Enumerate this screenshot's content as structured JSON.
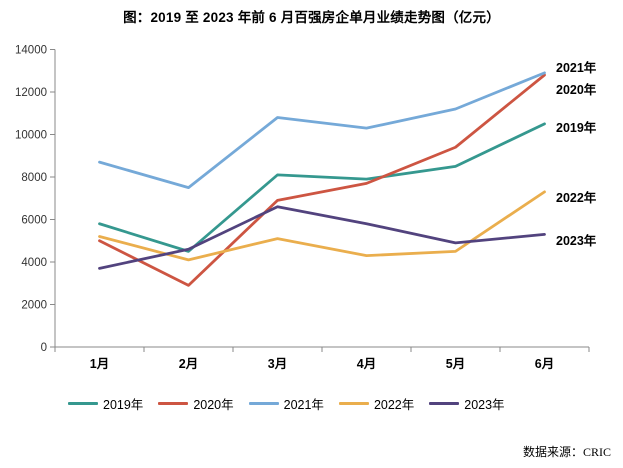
{
  "title": "图：2019 至 2023 年前 6 月百强房企单月业绩走势图（亿元）",
  "source_note": "数据来源：CRIC",
  "chart_data": {
    "type": "line",
    "title": "图：2019 至 2023 年前 6 月百强房企单月业绩走势图（亿元）",
    "unit": "亿元",
    "categories": [
      "1月",
      "2月",
      "3月",
      "4月",
      "5月",
      "6月"
    ],
    "series": [
      {
        "name": "2019年",
        "color": "#35988F",
        "values": [
          5800,
          4500,
          8100,
          7900,
          8500,
          10500
        ]
      },
      {
        "name": "2020年",
        "color": "#CD5542",
        "values": [
          5000,
          2900,
          6900,
          7700,
          9400,
          12800
        ]
      },
      {
        "name": "2021年",
        "color": "#75A9D8",
        "values": [
          8700,
          7500,
          10800,
          10300,
          11200,
          12900
        ]
      },
      {
        "name": "2022年",
        "color": "#EAAE4D",
        "values": [
          5200,
          4100,
          5100,
          4300,
          4500,
          7300
        ]
      },
      {
        "name": "2023年",
        "color": "#52437E",
        "values": [
          3700,
          4600,
          6600,
          5800,
          4900,
          5300
        ]
      }
    ],
    "ylim": [
      0,
      14000
    ],
    "ytick_labels": [
      "0",
      "2000",
      "4000",
      "6000",
      "8000",
      "10000",
      "12000",
      "14000"
    ],
    "grid": false,
    "legend_position": "bottom",
    "right_end_labels_top_to_bottom": [
      "2021年",
      "2020年",
      "2019年",
      "2022年",
      "2023年"
    ],
    "axis_color": "#898989",
    "tick_label_color": "#333333"
  }
}
